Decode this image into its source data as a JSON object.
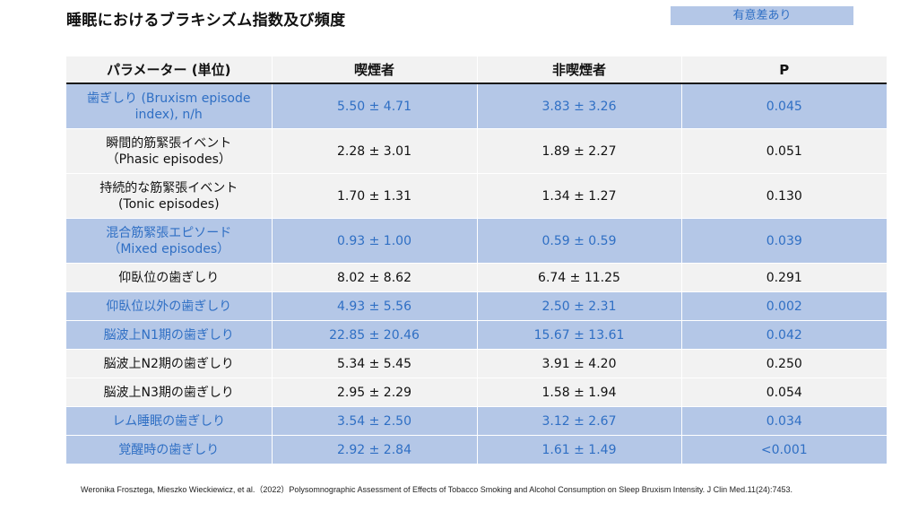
{
  "title": "睡眠におけるブラキシズム指数及び頻度",
  "legend_label": "有意差あり",
  "colors": {
    "significant_bg": "#b4c7e7",
    "significant_text": "#2f6fc4",
    "normal_bg": "#f2f2f2"
  },
  "table": {
    "headers": [
      "パラメーター (単位)",
      "喫煙者",
      "非喫煙者",
      "P"
    ],
    "rows": [
      {
        "param": "歯ぎしり (Bruxism episode\nindex), n/h",
        "smokers": "5.50 ± 4.71",
        "nonsmokers": "3.83 ± 3.26",
        "p": "0.045",
        "significant": true
      },
      {
        "param": "瞬間的筋緊張イベント\n（Phasic episodes）",
        "smokers": "2.28 ± 3.01",
        "nonsmokers": "1.89 ± 2.27",
        "p": "0.051",
        "significant": false
      },
      {
        "param": "持続的な筋緊張イベント\n(Tonic episodes)",
        "smokers": "1.70 ± 1.31",
        "nonsmokers": "1.34 ± 1.27",
        "p": "0.130",
        "significant": false
      },
      {
        "param": "混合筋緊張エピソード\n（Mixed episodes）",
        "smokers": "0.93 ± 1.00",
        "nonsmokers": "0.59 ± 0.59",
        "p": "0.039",
        "significant": true
      },
      {
        "param": "仰臥位の歯ぎしり",
        "smokers": "8.02 ± 8.62",
        "nonsmokers": "6.74 ± 11.25",
        "p": "0.291",
        "significant": false
      },
      {
        "param": "仰臥位以外の歯ぎしり",
        "smokers": "4.93 ± 5.56",
        "nonsmokers": "2.50 ± 2.31",
        "p": "0.002",
        "significant": true
      },
      {
        "param": "脳波上N1期の歯ぎしり",
        "smokers": "22.85 ± 20.46",
        "nonsmokers": "15.67 ± 13.61",
        "p": "0.042",
        "significant": true
      },
      {
        "param": "脳波上N2期の歯ぎしり",
        "smokers": "5.34 ± 5.45",
        "nonsmokers": "3.91 ± 4.20",
        "p": "0.250",
        "significant": false
      },
      {
        "param": "脳波上N3期の歯ぎしり",
        "smokers": "2.95 ± 2.29",
        "nonsmokers": "1.58 ± 1.94",
        "p": "0.054",
        "significant": false
      },
      {
        "param": "レム睡眠の歯ぎしり",
        "smokers": "3.54 ± 2.50",
        "nonsmokers": "3.12 ± 2.67",
        "p": "0.034",
        "significant": true
      },
      {
        "param": "覚醒時の歯ぎしり",
        "smokers": "2.92 ± 2.84",
        "nonsmokers": "1.61 ± 1.49",
        "p": "<0.001",
        "significant": true
      }
    ]
  },
  "citation": "Weronika Frosztega, Mieszko Wieckiewicz, et al.（2022）Polysomnographic Assessment of Effects of Tobacco Smoking and Alcohol Consumption on Sleep Bruxism Intensity. J Clin Med.11(24):7453."
}
